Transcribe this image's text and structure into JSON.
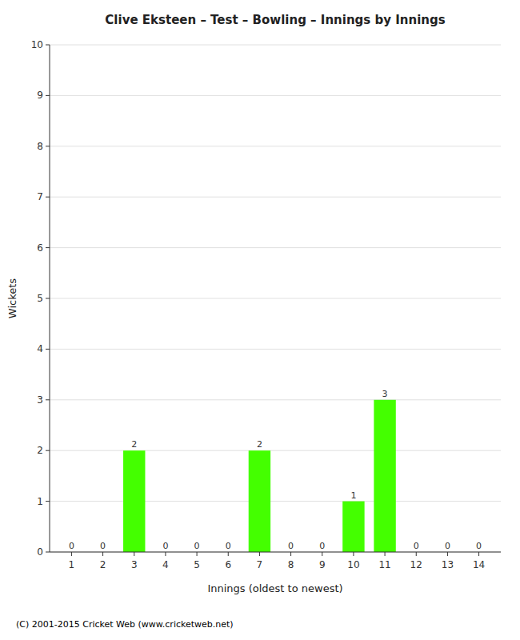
{
  "chart_data": {
    "type": "bar",
    "title": "Clive Eksteen – Test – Bowling – Innings by Innings",
    "x_label": "Innings (oldest to newest)",
    "y_label": "Wickets",
    "footer": "(C) 2001-2015 Cricket Web (www.cricketweb.net)",
    "x": [
      1,
      2,
      3,
      4,
      5,
      6,
      7,
      8,
      9,
      10,
      11,
      12,
      13,
      14
    ],
    "values": [
      0,
      0,
      2,
      0,
      0,
      0,
      2,
      0,
      0,
      1,
      3,
      0,
      0,
      0
    ],
    "color": "#44ff00",
    "xlim": [
      0.3,
      14.7
    ],
    "xticks": [
      1,
      2,
      3,
      4,
      5,
      6,
      7,
      8,
      9,
      10,
      11,
      12,
      13,
      14
    ],
    "ylim": [
      0,
      10
    ],
    "yticks": [
      0,
      1,
      2,
      3,
      4,
      5,
      6,
      7,
      8,
      9,
      10
    ],
    "grid": true,
    "data_labels": true
  }
}
